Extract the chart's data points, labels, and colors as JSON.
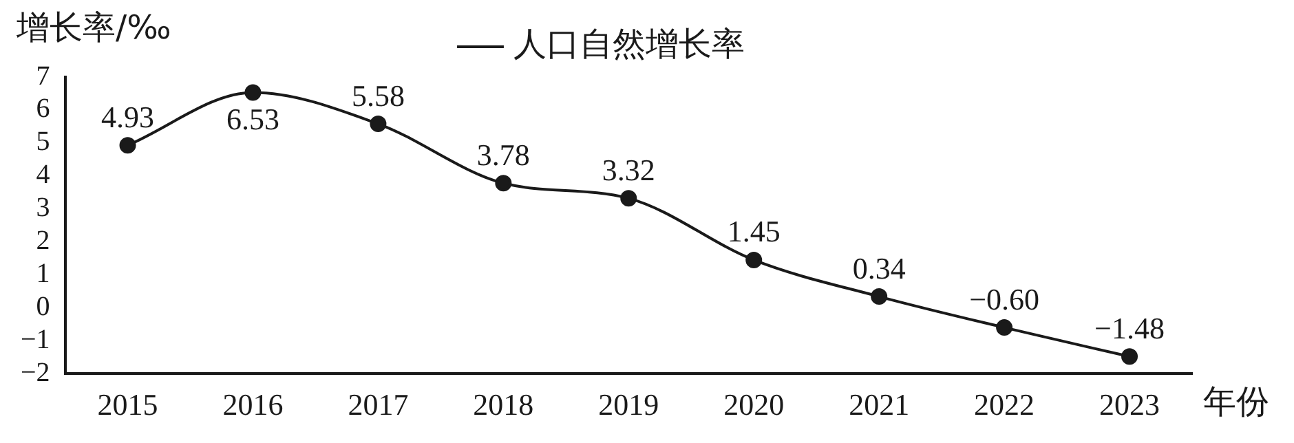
{
  "chart_data": {
    "type": "line",
    "ylabel": "增长率/‰",
    "xlabel": "年份",
    "categories": [
      "2015",
      "2016",
      "2017",
      "2018",
      "2019",
      "2020",
      "2021",
      "2022",
      "2023"
    ],
    "series": [
      {
        "name": "人口自然增长率",
        "color": "#1a1a1a",
        "values": [
          4.93,
          6.53,
          5.58,
          3.78,
          3.32,
          1.45,
          0.34,
          -0.6,
          -1.48
        ]
      }
    ],
    "ylim": [
      -2,
      7
    ],
    "yticks": [
      {
        "value": -2,
        "label": "−2"
      },
      {
        "value": -1,
        "label": "−1"
      },
      0,
      1,
      2,
      3,
      4,
      5,
      6,
      7
    ],
    "value_labels": [
      "4.93",
      "6.53",
      "5.58",
      "3.78",
      "3.32",
      "1.45",
      "0.34",
      "−0.60",
      "−1.48"
    ],
    "legend": "top",
    "marker": "circle",
    "line_style": "solid",
    "grid": false
  }
}
